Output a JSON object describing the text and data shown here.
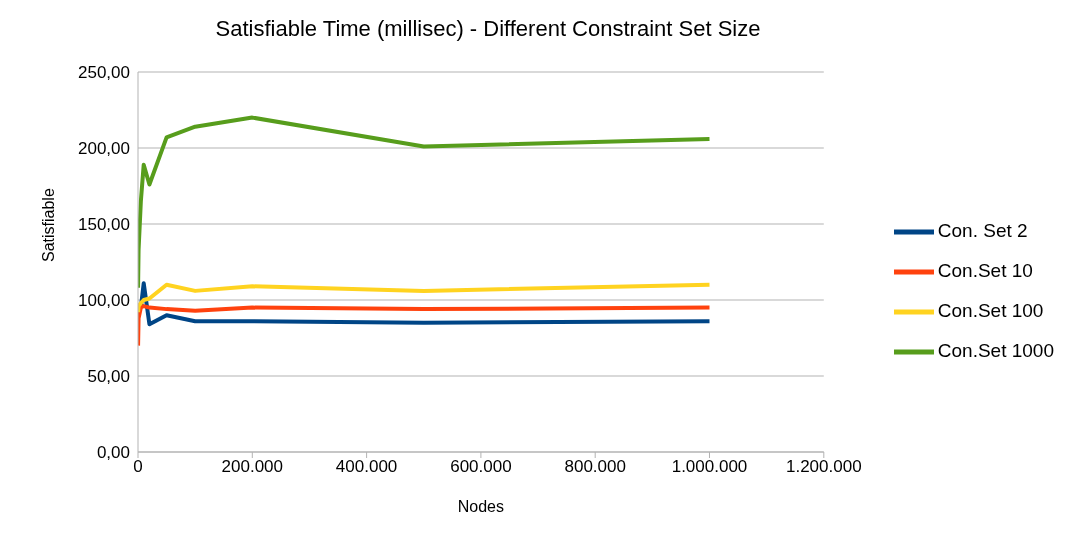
{
  "chart_data": {
    "type": "line",
    "title": "Satisfiable Time (millisec) - Different Constraint Set Size",
    "xlabel": "Nodes",
    "ylabel": "Satisfiable",
    "x": [
      100,
      1000,
      5000,
      10000,
      20000,
      50000,
      100000,
      200000,
      500000,
      1000000
    ],
    "series": [
      {
        "name": "Con. Set 2",
        "color": "#004586",
        "values": [
          null,
          null,
          95,
          111,
          84,
          90,
          86,
          86,
          85,
          86
        ]
      },
      {
        "name": "Con.Set 10",
        "color": "#ff420e",
        "values": [
          70,
          88,
          95,
          96,
          95,
          94,
          93,
          95,
          94,
          95
        ]
      },
      {
        "name": "Con.Set 100",
        "color": "#ffd320",
        "values": [
          92,
          96,
          98,
          100,
          101,
          110,
          106,
          109,
          106,
          110
        ]
      },
      {
        "name": "Con.Set 1000",
        "color": "#579d1c",
        "values": [
          108,
          133,
          165,
          189,
          176,
          207,
          214,
          220,
          201,
          206
        ]
      }
    ],
    "xlim": [
      0,
      1200000
    ],
    "xticks": [
      0,
      {
        "value": 200000,
        "label": "200.000"
      },
      {
        "value": 400000,
        "label": "400.000"
      },
      {
        "value": 600000,
        "label": "600.000"
      },
      {
        "value": 800000,
        "label": "800.000"
      },
      {
        "value": 1000000,
        "label": "1.000.000"
      },
      {
        "value": 1200000,
        "label": "1.200.000"
      }
    ],
    "ylim": [
      0,
      250
    ],
    "yticks": [
      {
        "value": 0,
        "label": "0,00"
      },
      {
        "value": 50,
        "label": "50,00"
      },
      {
        "value": 100,
        "label": "100,00"
      },
      {
        "value": 150,
        "label": "150,00"
      },
      {
        "value": 200,
        "label": "200,00"
      },
      {
        "value": 250,
        "label": "250,00"
      }
    ],
    "grid": "y",
    "legend": "right",
    "marker": "none",
    "line_style": "solid"
  }
}
